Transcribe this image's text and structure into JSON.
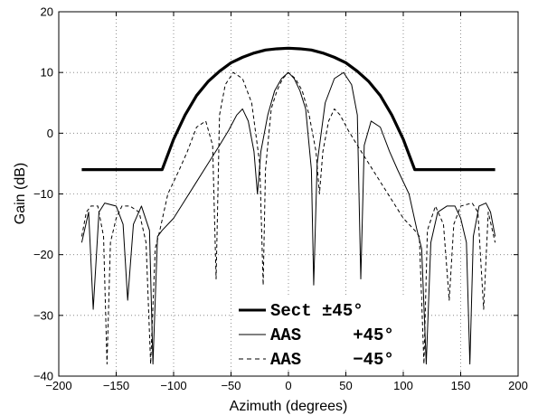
{
  "chart_data": {
    "type": "line",
    "title": "",
    "xlabel": "Azimuth (degrees)",
    "ylabel": "Gain (dB)",
    "xlim": [
      -200,
      200
    ],
    "ylim": [
      -40,
      20
    ],
    "xticks": [
      -200,
      -150,
      -100,
      -50,
      0,
      50,
      100,
      150,
      200
    ],
    "yticks": [
      -40,
      -30,
      -20,
      -10,
      0,
      10,
      20
    ],
    "grid": true,
    "legend_position": "bottom-center",
    "series": [
      {
        "name": "Sect ±45°",
        "style": "thick",
        "color": "#000000",
        "points": [
          [
            -180,
            -6
          ],
          [
            -110,
            -6
          ],
          [
            -100,
            -1
          ],
          [
            -90,
            3
          ],
          [
            -80,
            6.2
          ],
          [
            -70,
            8.5
          ],
          [
            -60,
            10.2
          ],
          [
            -50,
            11.6
          ],
          [
            -40,
            12.5
          ],
          [
            -30,
            13.2
          ],
          [
            -20,
            13.7
          ],
          [
            -10,
            13.9
          ],
          [
            0,
            14
          ],
          [
            10,
            13.9
          ],
          [
            20,
            13.7
          ],
          [
            30,
            13.2
          ],
          [
            40,
            12.5
          ],
          [
            50,
            11.6
          ],
          [
            60,
            10.2
          ],
          [
            70,
            8.5
          ],
          [
            80,
            6.2
          ],
          [
            90,
            3
          ],
          [
            100,
            -1
          ],
          [
            110,
            -6
          ],
          [
            180,
            -6
          ]
        ]
      },
      {
        "name": "AAS     +45°",
        "style": "solid",
        "color": "#000000",
        "points": [
          [
            -180,
            -18
          ],
          [
            -174,
            -13
          ],
          [
            -170,
            -29
          ],
          [
            -165,
            -13
          ],
          [
            -160,
            -11.5
          ],
          [
            -150,
            -12
          ],
          [
            -144,
            -15
          ],
          [
            -140,
            -27.5
          ],
          [
            -135,
            -15
          ],
          [
            -128,
            -12
          ],
          [
            -121,
            -16
          ],
          [
            -118,
            -38
          ],
          [
            -114,
            -17
          ],
          [
            -110,
            -16
          ],
          [
            -100,
            -14
          ],
          [
            -90,
            -11
          ],
          [
            -80,
            -8
          ],
          [
            -70,
            -5
          ],
          [
            -60,
            -2
          ],
          [
            -52,
            0.5
          ],
          [
            -45,
            3
          ],
          [
            -40,
            4
          ],
          [
            -35,
            2
          ],
          [
            -30,
            -3
          ],
          [
            -27,
            -10
          ],
          [
            -24,
            -3
          ],
          [
            -18,
            3
          ],
          [
            -12,
            7
          ],
          [
            -6,
            9
          ],
          [
            0,
            10
          ],
          [
            5,
            9
          ],
          [
            10,
            7
          ],
          [
            15,
            4
          ],
          [
            20,
            -6
          ],
          [
            22,
            -25
          ],
          [
            25,
            -5
          ],
          [
            32,
            5
          ],
          [
            40,
            9
          ],
          [
            48,
            10
          ],
          [
            55,
            8
          ],
          [
            60,
            3
          ],
          [
            63,
            -24
          ],
          [
            66,
            -2
          ],
          [
            72,
            2
          ],
          [
            80,
            1
          ],
          [
            88,
            -3
          ],
          [
            95,
            -6
          ],
          [
            105,
            -10
          ],
          [
            112,
            -16
          ],
          [
            116,
            -19
          ],
          [
            120,
            -38
          ],
          [
            124,
            -18
          ],
          [
            130,
            -13
          ],
          [
            138,
            -12
          ],
          [
            145,
            -12
          ],
          [
            150,
            -14
          ],
          [
            155,
            -18
          ],
          [
            158,
            -38
          ],
          [
            161,
            -17
          ],
          [
            166,
            -12
          ],
          [
            172,
            -11.5
          ],
          [
            176,
            -13
          ],
          [
            180,
            -17
          ]
        ]
      },
      {
        "name": "AAS     −45°",
        "style": "dashed",
        "color": "#000000",
        "points": [
          [
            -180,
            -17
          ],
          [
            -176,
            -13
          ],
          [
            -172,
            -12
          ],
          [
            -166,
            -12
          ],
          [
            -161,
            -17
          ],
          [
            -158,
            -38
          ],
          [
            -155,
            -18
          ],
          [
            -150,
            -14
          ],
          [
            -145,
            -12
          ],
          [
            -138,
            -12
          ],
          [
            -130,
            -13
          ],
          [
            -124,
            -18
          ],
          [
            -120,
            -38
          ],
          [
            -116,
            -19
          ],
          [
            -112,
            -16
          ],
          [
            -105,
            -10
          ],
          [
            -95,
            -6
          ],
          [
            -88,
            -3
          ],
          [
            -80,
            1
          ],
          [
            -72,
            2
          ],
          [
            -66,
            -2
          ],
          [
            -63,
            -24
          ],
          [
            -60,
            3
          ],
          [
            -55,
            8
          ],
          [
            -48,
            10
          ],
          [
            -40,
            9
          ],
          [
            -32,
            5
          ],
          [
            -25,
            -5
          ],
          [
            -22,
            -25
          ],
          [
            -20,
            -6
          ],
          [
            -15,
            4
          ],
          [
            -10,
            7
          ],
          [
            -5,
            9
          ],
          [
            0,
            10
          ],
          [
            6,
            9
          ],
          [
            12,
            7
          ],
          [
            18,
            3
          ],
          [
            24,
            -3
          ],
          [
            27,
            -10
          ],
          [
            30,
            -3
          ],
          [
            35,
            2
          ],
          [
            40,
            4
          ],
          [
            45,
            3
          ],
          [
            52,
            0.5
          ],
          [
            60,
            -2
          ],
          [
            70,
            -5
          ],
          [
            80,
            -8
          ],
          [
            90,
            -11
          ],
          [
            100,
            -14
          ],
          [
            110,
            -16
          ],
          [
            114,
            -17
          ],
          [
            118,
            -38
          ],
          [
            121,
            -16
          ],
          [
            128,
            -12
          ],
          [
            135,
            -15
          ],
          [
            140,
            -27.5
          ],
          [
            144,
            -15
          ],
          [
            150,
            -12
          ],
          [
            160,
            -11.5
          ],
          [
            165,
            -13
          ],
          [
            170,
            -29
          ],
          [
            174,
            -13
          ],
          [
            180,
            -18
          ]
        ]
      }
    ]
  }
}
